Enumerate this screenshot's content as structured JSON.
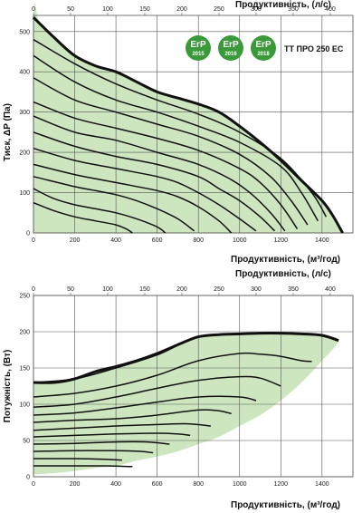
{
  "model": "ТТ ПРО 250 ЕС",
  "erp_badges": [
    {
      "label": "ErP",
      "year": "2015"
    },
    {
      "label": "ErP",
      "year": "2016"
    },
    {
      "label": "ErP",
      "year": "2018"
    }
  ],
  "colors": {
    "fill": "#cde6c0",
    "curve": "#111111",
    "grid": "#555555",
    "badge": "#3a9a3a"
  },
  "chart_data": [
    {
      "type": "line",
      "xlabel": "Продуктивність, (м³/год)",
      "x2label": "Продуктивність, (л/с)",
      "ylabel": "Тиск, ΔP (Па)",
      "xlim": [
        0,
        1550
      ],
      "x2_ticks": [
        0,
        50,
        100,
        150,
        200,
        250,
        300,
        350,
        400
      ],
      "x_ticks": [
        0,
        200,
        400,
        600,
        800,
        1000,
        1200,
        1400
      ],
      "ylim": [
        0,
        540
      ],
      "y_ticks": [
        0,
        100,
        200,
        300,
        400,
        500
      ],
      "grid": true,
      "envelope": {
        "x": [
          0,
          30,
          100,
          200,
          300,
          400,
          500,
          600,
          700,
          800,
          900,
          1000,
          1100,
          1200,
          1300,
          1400,
          1450,
          1500
        ],
        "y": [
          535,
          520,
          485,
          440,
          415,
          400,
          375,
          350,
          335,
          320,
          300,
          265,
          225,
          180,
          130,
          80,
          45,
          0
        ]
      },
      "series": [
        {
          "x": [
            0,
            200,
            400,
            600,
            800,
            1000,
            1200,
            1350,
            1420
          ],
          "y": [
            480,
            420,
            370,
            330,
            295,
            250,
            185,
            100,
            40
          ]
        },
        {
          "x": [
            0,
            200,
            400,
            600,
            800,
            1000,
            1200,
            1300,
            1380
          ],
          "y": [
            440,
            375,
            330,
            300,
            265,
            225,
            165,
            100,
            30
          ]
        },
        {
          "x": [
            0,
            200,
            400,
            600,
            800,
            1000,
            1150,
            1250,
            1330
          ],
          "y": [
            385,
            330,
            300,
            270,
            240,
            195,
            140,
            80,
            20
          ]
        },
        {
          "x": [
            0,
            200,
            400,
            600,
            800,
            1000,
            1100,
            1200,
            1280
          ],
          "y": [
            325,
            285,
            260,
            235,
            205,
            160,
            125,
            70,
            10
          ]
        },
        {
          "x": [
            0,
            200,
            400,
            600,
            800,
            950,
            1050,
            1150,
            1220
          ],
          "y": [
            290,
            250,
            230,
            200,
            170,
            135,
            100,
            50,
            5
          ]
        },
        {
          "x": [
            0,
            200,
            400,
            600,
            800,
            900,
            1000,
            1100,
            1170
          ],
          "y": [
            250,
            215,
            190,
            170,
            140,
            110,
            80,
            40,
            5
          ]
        },
        {
          "x": [
            0,
            200,
            400,
            600,
            700,
            800,
            900,
            1000,
            1080
          ],
          "y": [
            210,
            180,
            160,
            140,
            125,
            100,
            70,
            35,
            5
          ]
        },
        {
          "x": [
            0,
            200,
            400,
            600,
            700,
            800,
            900,
            960
          ],
          "y": [
            170,
            145,
            125,
            105,
            90,
            65,
            30,
            0
          ]
        },
        {
          "x": [
            0,
            200,
            300,
            400,
            500,
            600,
            700,
            780
          ],
          "y": [
            140,
            115,
            105,
            95,
            80,
            60,
            35,
            5
          ]
        },
        {
          "x": [
            0,
            100,
            200,
            300,
            400,
            500,
            600,
            640
          ],
          "y": [
            110,
            85,
            70,
            60,
            50,
            35,
            15,
            0
          ]
        },
        {
          "x": [
            0,
            100,
            200,
            300,
            400,
            450,
            480
          ],
          "y": [
            75,
            55,
            40,
            30,
            20,
            10,
            0
          ]
        }
      ]
    },
    {
      "type": "line",
      "xlabel": "Продуктивність, (м³/год)",
      "x2label": "Продуктивність, (л/с)",
      "ylabel": "Потужність, (Вт)",
      "xlim": [
        0,
        1550
      ],
      "x2_ticks": [
        0,
        50,
        100,
        150,
        200,
        250,
        300,
        350,
        400
      ],
      "x_ticks": [
        0,
        200,
        400,
        600,
        800,
        1000,
        1200,
        1400
      ],
      "ylim": [
        0,
        250
      ],
      "y_ticks": [
        0,
        50,
        100,
        150,
        200,
        250
      ],
      "grid": true,
      "envelope": {
        "x": [
          0,
          100,
          200,
          300,
          400,
          500,
          600,
          700,
          800,
          900,
          1000,
          1100,
          1200,
          1300,
          1400,
          1480,
          1400,
          1300,
          1200,
          1100,
          1000,
          900,
          800,
          700,
          600,
          500,
          400,
          300,
          200,
          100,
          0
        ],
        "y": [
          130,
          130,
          135,
          145,
          152,
          160,
          170,
          182,
          193,
          196,
          197,
          198,
          198,
          197,
          195,
          188,
          160,
          130,
          105,
          85,
          70,
          55,
          45,
          35,
          28,
          22,
          15,
          12,
          8,
          5,
          3
        ]
      },
      "series": [
        {
          "x": [
            0,
            200,
            400,
            600,
            800,
            1000,
            1200,
            1300,
            1400,
            1480
          ],
          "y": [
            130,
            135,
            150,
            168,
            193,
            197,
            198,
            197,
            195,
            188
          ]
        },
        {
          "x": [
            0,
            200,
            400,
            600,
            800,
            1000,
            1100,
            1200,
            1300,
            1350
          ],
          "y": [
            110,
            115,
            125,
            140,
            160,
            170,
            169,
            166,
            160,
            159
          ]
        },
        {
          "x": [
            0,
            200,
            400,
            600,
            800,
            1000,
            1100,
            1200
          ],
          "y": [
            96,
            100,
            110,
            122,
            133,
            138,
            136,
            125
          ]
        },
        {
          "x": [
            0,
            200,
            400,
            600,
            800,
            1000,
            1080
          ],
          "y": [
            85,
            88,
            95,
            103,
            110,
            110,
            105
          ]
        },
        {
          "x": [
            0,
            200,
            400,
            600,
            800,
            900,
            960
          ],
          "y": [
            75,
            78,
            80,
            85,
            92,
            91,
            87
          ]
        },
        {
          "x": [
            0,
            200,
            400,
            600,
            750,
            860
          ],
          "y": [
            64,
            67,
            70,
            72,
            73,
            70
          ]
        },
        {
          "x": [
            0,
            200,
            400,
            600,
            700,
            760
          ],
          "y": [
            55,
            57,
            59,
            60,
            59,
            57
          ]
        },
        {
          "x": [
            0,
            200,
            400,
            550,
            660
          ],
          "y": [
            45,
            46,
            48,
            48,
            45
          ]
        },
        {
          "x": [
            0,
            200,
            400,
            520,
            580
          ],
          "y": [
            35,
            36,
            36,
            35,
            33
          ]
        },
        {
          "x": [
            0,
            200,
            350,
            430
          ],
          "y": [
            25,
            25,
            24,
            23
          ]
        },
        {
          "x": [
            0,
            200,
            350,
            480
          ],
          "y": [
            15,
            15,
            15,
            14
          ]
        }
      ]
    }
  ]
}
